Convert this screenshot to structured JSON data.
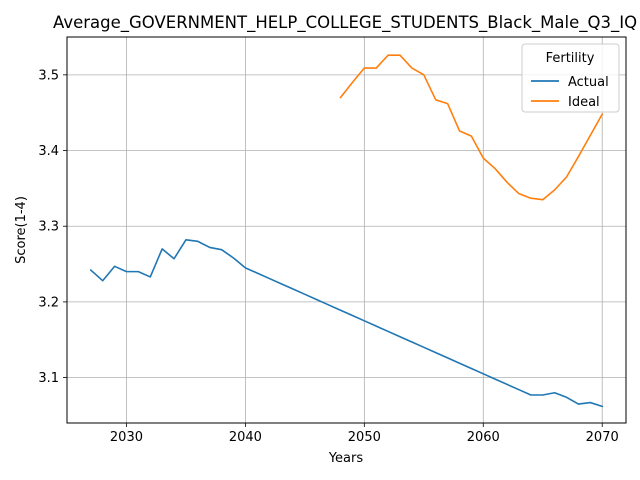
{
  "chart_data": {
    "type": "line",
    "title": "Average_GOVERNMENT_HELP_COLLEGE_STUDENTS_Black_Male_Q3_IQ",
    "xlabel": "Years",
    "ylabel": "Score(1-4)",
    "xlim": [
      2025,
      2072
    ],
    "ylim": [
      3.04,
      3.55
    ],
    "xticks": [
      2030,
      2040,
      2050,
      2060,
      2070
    ],
    "yticks": [
      3.1,
      3.2,
      3.3,
      3.4,
      3.5
    ],
    "grid": true,
    "legend": {
      "title": "Fertility",
      "placement": "top-right"
    },
    "series": [
      {
        "name": "Actual",
        "color": "#1f77b4",
        "x": [
          2027,
          2028,
          2029,
          2030,
          2031,
          2032,
          2033,
          2034,
          2035,
          2036,
          2037,
          2038,
          2039,
          2040,
          2041,
          2042,
          2043,
          2044,
          2045,
          2046,
          2047,
          2048,
          2049,
          2050,
          2051,
          2052,
          2053,
          2054,
          2055,
          2056,
          2057,
          2058,
          2059,
          2060,
          2061,
          2062,
          2063,
          2064,
          2065,
          2066,
          2067,
          2068,
          2069,
          2070
        ],
        "y": [
          3.242,
          3.228,
          3.247,
          3.24,
          3.24,
          3.233,
          3.27,
          3.257,
          3.282,
          3.28,
          3.272,
          3.269,
          3.258,
          3.245,
          3.238,
          3.231,
          3.224,
          3.217,
          3.21,
          3.203,
          3.196,
          3.189,
          3.182,
          3.175,
          3.168,
          3.161,
          3.154,
          3.147,
          3.14,
          3.133,
          3.126,
          3.119,
          3.112,
          3.105,
          3.098,
          3.091,
          3.084,
          3.077,
          3.077,
          3.08,
          3.074,
          3.065,
          3.067,
          3.062
        ]
      },
      {
        "name": "Ideal",
        "color": "#ff7f0e",
        "x": [
          2048,
          2049,
          2050,
          2051,
          2052,
          2053,
          2054,
          2055,
          2056,
          2057,
          2058,
          2059,
          2060,
          2061,
          2062,
          2063,
          2064,
          2065,
          2066,
          2067,
          2068,
          2069,
          2070
        ],
        "y": [
          3.47,
          3.49,
          3.509,
          3.509,
          3.526,
          3.526,
          3.509,
          3.5,
          3.467,
          3.462,
          3.426,
          3.419,
          3.39,
          3.376,
          3.358,
          3.343,
          3.337,
          3.335,
          3.348,
          3.365,
          3.392,
          3.42,
          3.448
        ]
      }
    ]
  }
}
